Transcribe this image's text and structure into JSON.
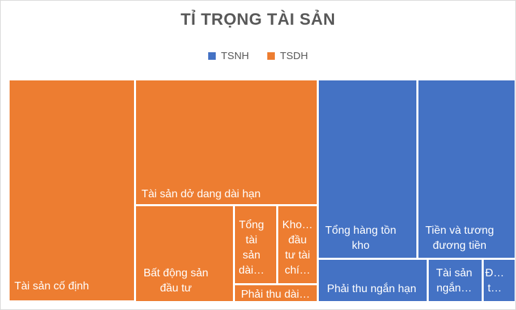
{
  "chart_data": {
    "type": "treemap",
    "title": "TỈ TRỌNG TÀI SẢN",
    "legend": [
      {
        "name": "TSNH",
        "color": "#4472C4"
      },
      {
        "name": "TSDH",
        "color": "#ED7D31"
      }
    ],
    "groups": [
      {
        "name": "TSDH",
        "color": "#ED7D31",
        "items": [
          {
            "label": "Tài sản cố định",
            "value": 18.8
          },
          {
            "label": "Tài sản dở dang dài hạn",
            "value": 13.0
          },
          {
            "label": "Bất động sản đầu tư",
            "value": 6.2
          },
          {
            "label": "Tổng tài sản dài…",
            "value": 2.2
          },
          {
            "label": "Kho… đầu tư tài chí…",
            "value": 2.2
          },
          {
            "label": "Phải thu dài…",
            "value": 1.1
          }
        ]
      },
      {
        "name": "TSNH",
        "color": "#4472C4",
        "items": [
          {
            "label": "Tổng hàng tồn kho",
            "value": 12.4
          },
          {
            "label": "Tiền và tương đương tiền",
            "value": 11.3
          },
          {
            "label": "Phải thu ngắn hạn",
            "value": 4.8
          },
          {
            "label": "Tài sản ngắn…",
            "value": 2.5
          },
          {
            "label": "Đ… t…",
            "value": 1.2
          }
        ]
      }
    ]
  }
}
